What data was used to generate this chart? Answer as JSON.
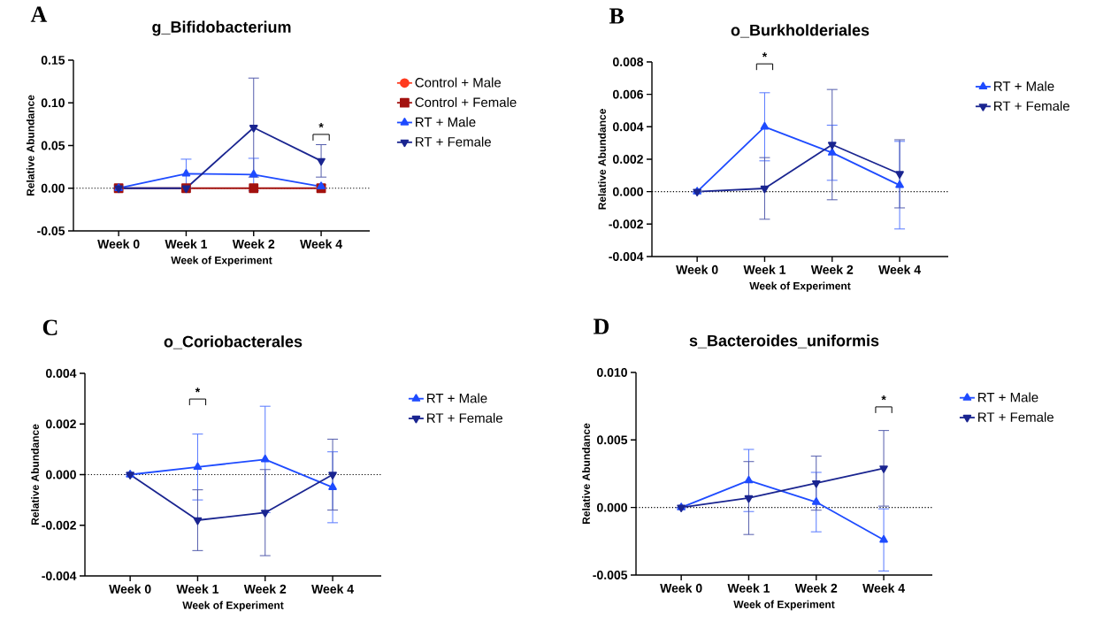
{
  "chart_data": [
    {
      "type": "line",
      "title": "g_Bifidobacterium",
      "xlabel": "Week of Experiment",
      "ylabel": "Relative Abundance",
      "categories": [
        "Week 0",
        "Week 1",
        "Week 2",
        "Week 4"
      ],
      "ylim": [
        -0.05,
        0.15
      ],
      "yticks": [
        {
          "value": -0.05,
          "label": "-0.05"
        },
        {
          "value": 0,
          "label": "0.00"
        },
        {
          "value": 0.05,
          "label": "0.05"
        },
        {
          "value": 0.1,
          "label": "0.10"
        },
        {
          "value": 0.15,
          "label": "0.15"
        }
      ],
      "legend": "right",
      "series": [
        {
          "name": "Control + Male",
          "color": "#ff3b1f",
          "marker": "circle",
          "values": [
            null,
            null,
            null,
            null
          ]
        },
        {
          "name": "Control + Female",
          "color": "#a3120f",
          "marker": "square",
          "values": [
            0,
            0,
            0,
            0
          ]
        },
        {
          "name": "RT + Male",
          "color": "#1e4bff",
          "marker": "triangle",
          "values": [
            0,
            0.017,
            0.016,
            0.002
          ],
          "errors": [
            null,
            0.017,
            0.019,
            0.002
          ]
        },
        {
          "name": "RT + Female",
          "color": "#1a2590",
          "marker": "triangle-down",
          "values": [
            0,
            0,
            0.071,
            0.032
          ],
          "errors": [
            null,
            null,
            0.058,
            0.019
          ]
        }
      ],
      "ref_lines": [
        {
          "axis": "y",
          "value": 0,
          "line_style": "dotted"
        }
      ],
      "annotations": [
        "A",
        "*"
      ]
    },
    {
      "type": "line",
      "title": "o_Burkholderiales",
      "xlabel": "Week of Experiment",
      "ylabel": "Relative Abundance",
      "categories": [
        "Week 0",
        "Week 1",
        "Week 2",
        "Week 4"
      ],
      "ylim": [
        -0.004,
        0.008
      ],
      "yticks": [
        {
          "value": -0.004,
          "label": "-0.004"
        },
        {
          "value": -0.002,
          "label": "-0.002"
        },
        {
          "value": 0,
          "label": "0.000"
        },
        {
          "value": 0.002,
          "label": "0.002"
        },
        {
          "value": 0.004,
          "label": "0.004"
        },
        {
          "value": 0.006,
          "label": "0.006"
        },
        {
          "value": 0.008,
          "label": "0.008"
        }
      ],
      "legend": "right",
      "series": [
        {
          "name": "RT + Male",
          "color": "#1e4bff",
          "marker": "triangle",
          "values": [
            0,
            0.004,
            0.0024,
            0.0004
          ],
          "errors": [
            null,
            0.0021,
            0.0017,
            0.0027
          ]
        },
        {
          "name": "RT + Female",
          "color": "#1a2590",
          "marker": "triangle-down",
          "values": [
            0,
            0.0002,
            0.0029,
            0.0011
          ],
          "errors": [
            null,
            0.0019,
            0.0034,
            0.0021
          ]
        }
      ],
      "ref_lines": [
        {
          "axis": "y",
          "value": 0,
          "line_style": "dotted"
        }
      ],
      "annotations": [
        "B",
        "*"
      ]
    },
    {
      "type": "line",
      "title": "o_Coriobacterales",
      "xlabel": "Week of Experiment",
      "ylabel": "Relative Abundance",
      "categories": [
        "Week 0",
        "Week 1",
        "Week 2",
        "Week 4"
      ],
      "ylim": [
        -0.004,
        0.004
      ],
      "yticks": [
        {
          "value": -0.004,
          "label": "-0.004"
        },
        {
          "value": -0.002,
          "label": "-0.002"
        },
        {
          "value": 0,
          "label": "0.000"
        },
        {
          "value": 0.002,
          "label": "0.002"
        },
        {
          "value": 0.004,
          "label": "0.004"
        }
      ],
      "legend": "right",
      "series": [
        {
          "name": "RT + Male",
          "color": "#1e4bff",
          "marker": "triangle",
          "values": [
            0,
            0.0003,
            0.0006,
            -0.0005
          ],
          "errors": [
            null,
            0.0013,
            0.0021,
            0.0014
          ]
        },
        {
          "name": "RT + Female",
          "color": "#1a2590",
          "marker": "triangle-down",
          "values": [
            0,
            -0.0018,
            -0.0015,
            0
          ],
          "errors": [
            null,
            0.0012,
            0.0017,
            0.0014
          ]
        }
      ],
      "ref_lines": [
        {
          "axis": "y",
          "value": 0,
          "line_style": "dotted"
        }
      ],
      "annotations": [
        "C",
        "*"
      ]
    },
    {
      "type": "line",
      "title": "s_Bacteroides_uniformis",
      "xlabel": "Week of Experiment",
      "ylabel": "Relative Abundance",
      "categories": [
        "Week 0",
        "Week 1",
        "Week 2",
        "Week 4"
      ],
      "ylim": [
        -0.005,
        0.01
      ],
      "yticks": [
        {
          "value": -0.005,
          "label": "-0.005"
        },
        {
          "value": 0,
          "label": "0.000"
        },
        {
          "value": 0.005,
          "label": "0.005"
        },
        {
          "value": 0.01,
          "label": "0.010"
        }
      ],
      "legend": "right",
      "series": [
        {
          "name": "RT + Male",
          "color": "#1e4bff",
          "marker": "triangle",
          "values": [
            0,
            0.002,
            0.0004,
            -0.0024
          ],
          "errors": [
            null,
            0.0023,
            0.0022,
            0.0023
          ]
        },
        {
          "name": "RT + Female",
          "color": "#1a2590",
          "marker": "triangle-down",
          "values": [
            0,
            0.0007,
            0.0018,
            0.0029
          ],
          "errors": [
            null,
            0.0027,
            0.002,
            0.0028
          ]
        }
      ],
      "ref_lines": [
        {
          "axis": "y",
          "value": 0,
          "line_style": "dotted"
        }
      ],
      "annotations": [
        "D",
        "*"
      ]
    }
  ]
}
